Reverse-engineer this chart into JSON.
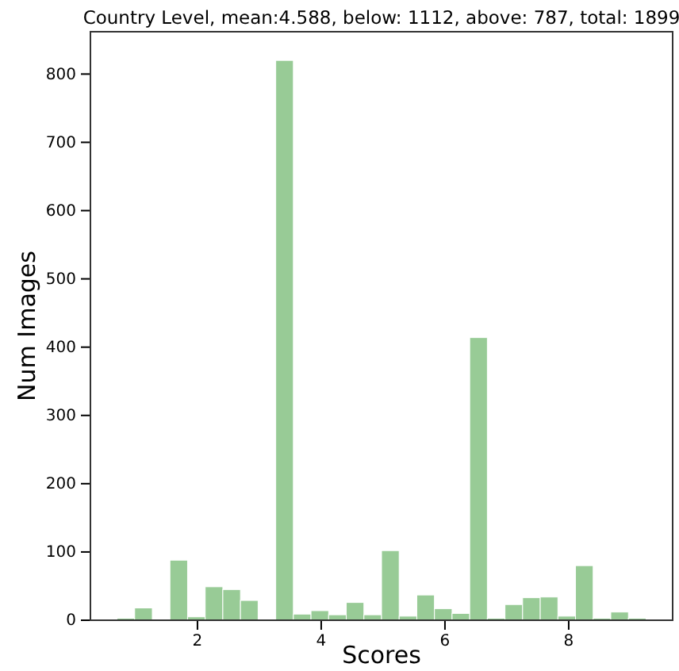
{
  "chart_data": {
    "type": "histogram",
    "title": "Country Level, mean:4.588, below: 1112, above: 787, total: 1899",
    "xlabel": "Scores",
    "ylabel": "Num Images",
    "color": "#98cb96",
    "bins": [
      0.7,
      0.985,
      1.27,
      1.555,
      1.84,
      2.125,
      2.41,
      2.695,
      2.98,
      3.265,
      3.55,
      3.835,
      4.12,
      4.405,
      4.69,
      4.975,
      5.26,
      5.545,
      5.83,
      6.115,
      6.4,
      6.685,
      6.97,
      7.255,
      7.54,
      7.825,
      8.11,
      8.395,
      8.68,
      8.965,
      9.25
    ],
    "values": [
      3,
      18,
      null,
      88,
      5,
      49,
      45,
      29,
      null,
      820,
      9,
      14,
      8,
      26,
      8,
      102,
      6,
      37,
      17,
      10,
      414,
      3,
      23,
      33,
      34,
      6,
      80,
      3,
      12,
      3
    ],
    "xlim": [
      0.27,
      9.68
    ],
    "ylim": [
      0,
      862
    ],
    "xticks": [
      2,
      4,
      6,
      8
    ],
    "yticks": [
      0,
      100,
      200,
      300,
      400,
      500,
      600,
      700,
      800
    ],
    "grid": false
  }
}
